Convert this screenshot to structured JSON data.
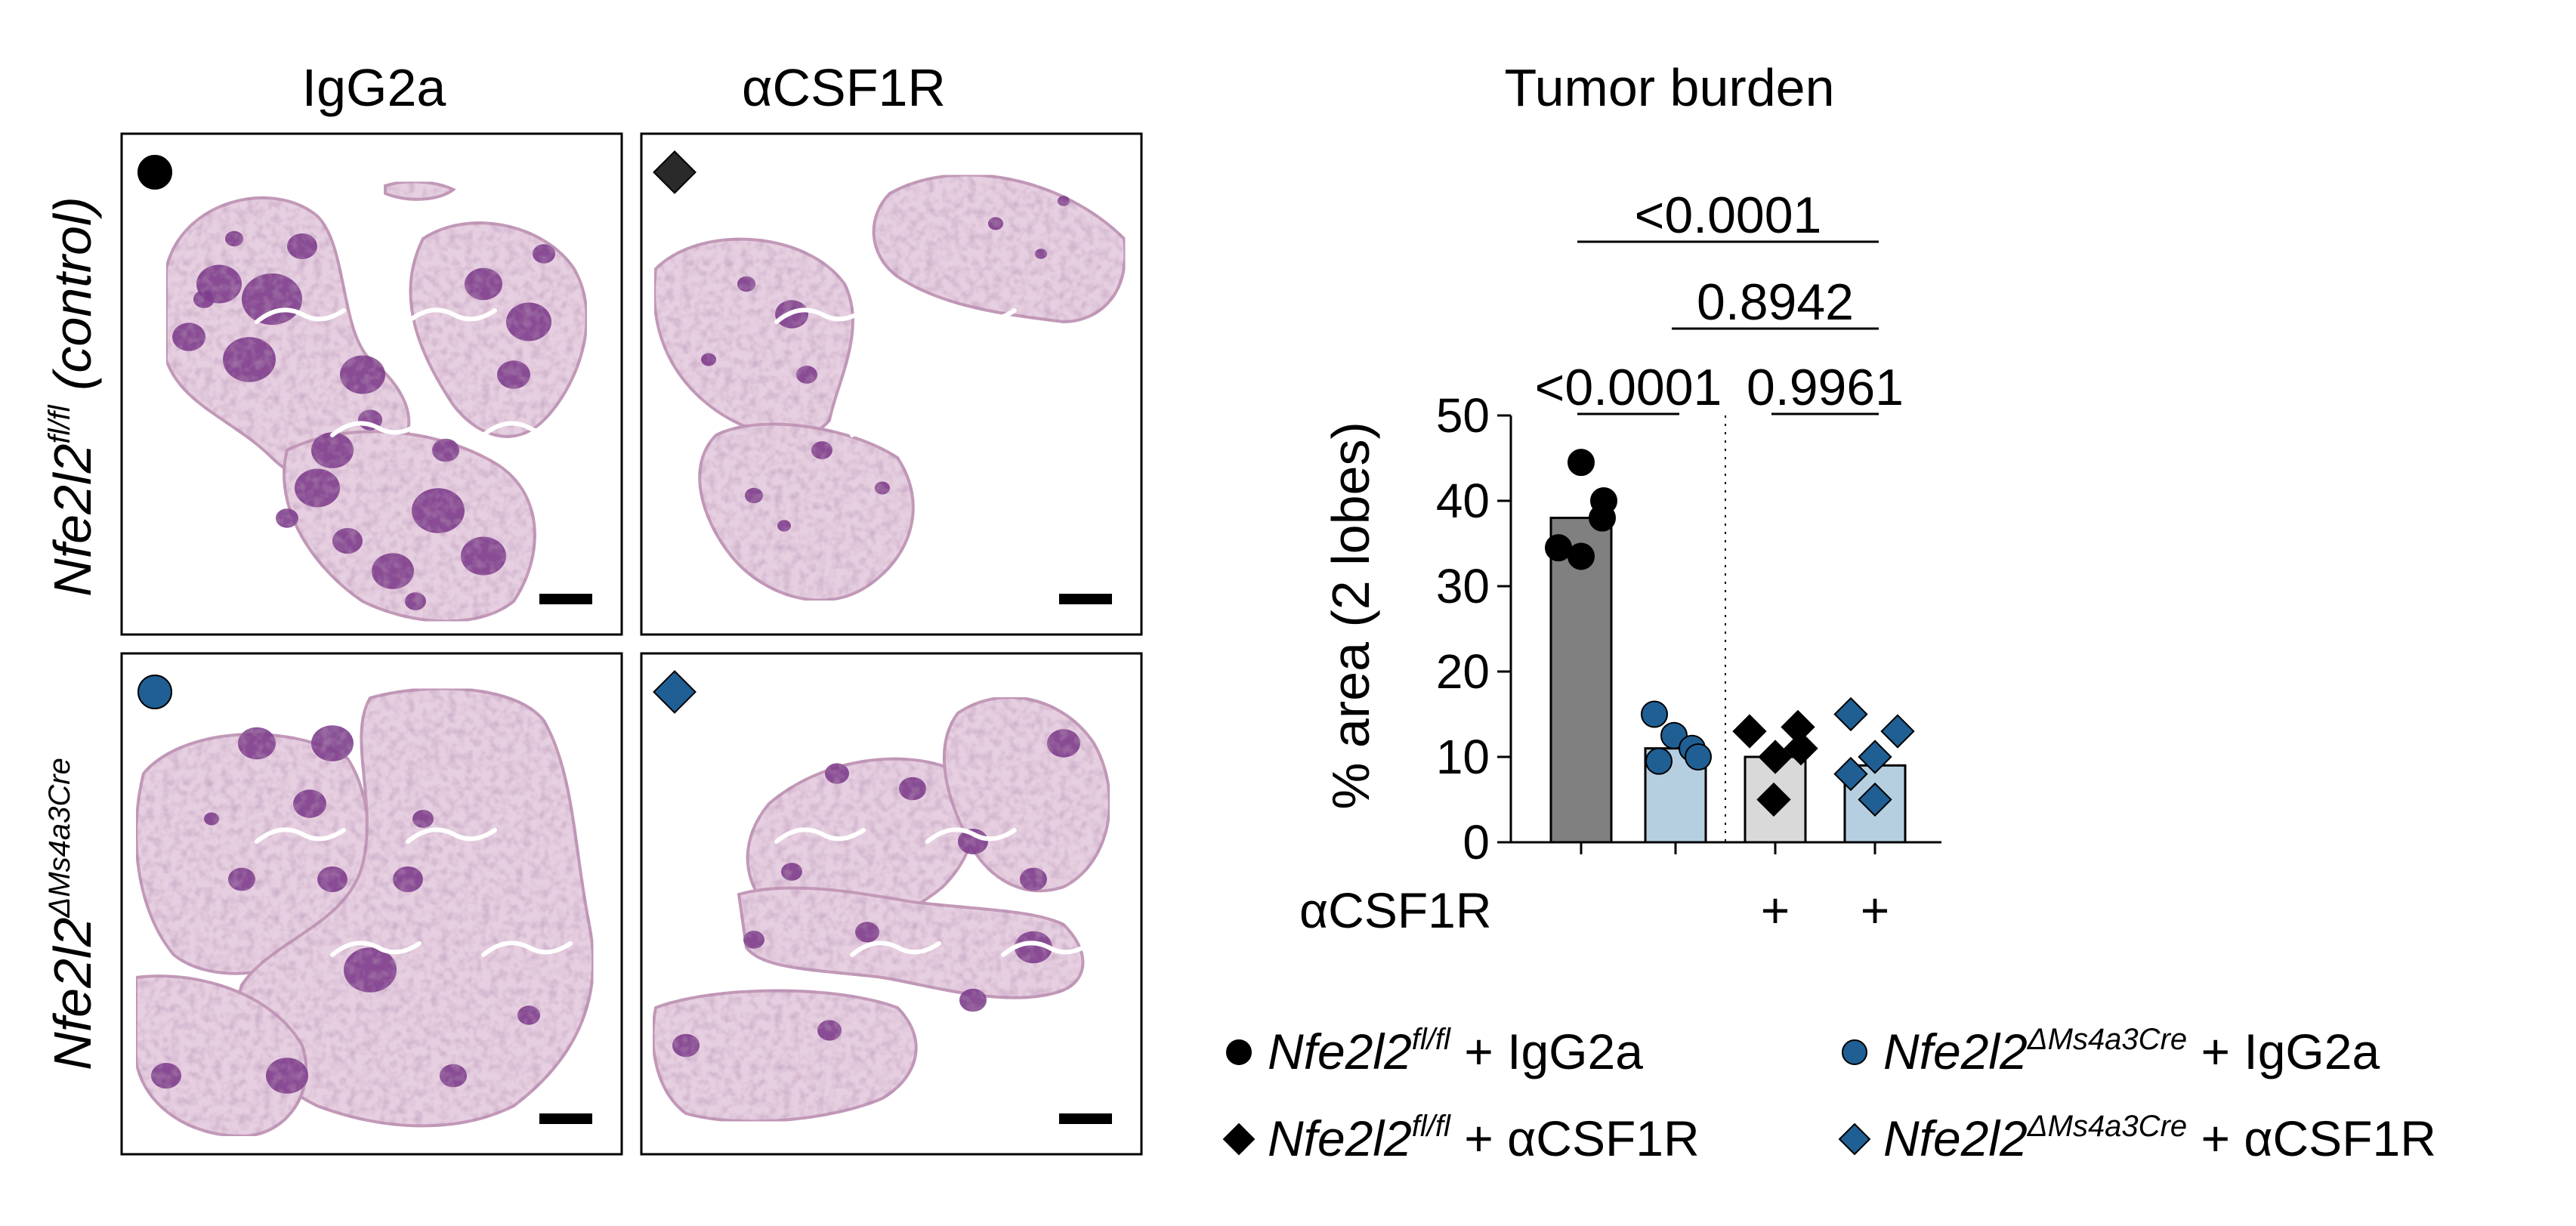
{
  "column_headers": [
    "IgG2a",
    "αCSF1R"
  ],
  "row_labels": [
    {
      "base": "Nfe2l2",
      "sup": "fl/fl",
      "suffix": " (control)"
    },
    {
      "base": "Nfe2l2",
      "sup": "ΔMs4a3Cre",
      "suffix": ""
    }
  ],
  "panel_markers": [
    {
      "shape": "circle",
      "color": "#000000"
    },
    {
      "shape": "diamond",
      "color": "#2a2a2a"
    },
    {
      "shape": "circle",
      "color": "#1f5f94"
    },
    {
      "shape": "diamond",
      "color": "#1f5f94"
    }
  ],
  "colors": {
    "tissue": "#e6cfe0",
    "tissue_edge": "#c39ab8",
    "tumor": "#7d3d8c",
    "vessel": "#ffffff",
    "scale_bar": "#000000"
  },
  "chart_data": {
    "type": "bar",
    "title": "Tumor burden",
    "ylabel": "% area (2 lobes)",
    "ylim": [
      0,
      50
    ],
    "yticks": [
      0,
      10,
      20,
      30,
      40,
      50
    ],
    "treatment_row_label": "αCSF1R",
    "treatment_marks": [
      "",
      "",
      "+",
      "+"
    ],
    "divider_after_bar": 2,
    "bars": [
      {
        "name": "Nfe2l2fl/fl + IgG2a",
        "mean": 38,
        "fill": "#808080",
        "marker": "circle",
        "marker_color": "#000000",
        "points": [
          44.5,
          40,
          38,
          34.5,
          33.5
        ]
      },
      {
        "name": "Nfe2l2ΔMs4a3Cre + IgG2a",
        "mean": 11,
        "fill": "#b6cfe0",
        "marker": "circle",
        "marker_color": "#1f5f94",
        "points": [
          15,
          12.5,
          11,
          10,
          9.5
        ]
      },
      {
        "name": "Nfe2l2fl/fl + αCSF1R",
        "mean": 10,
        "fill": "#d9d9d9",
        "marker": "diamond",
        "marker_color": "#000000",
        "points": [
          13,
          13.5,
          10,
          11,
          5
        ]
      },
      {
        "name": "Nfe2l2ΔMs4a3Cre + αCSF1R",
        "mean": 9,
        "fill": "#b6cfe0",
        "marker": "diamond",
        "marker_color": "#1f5f94",
        "points": [
          15,
          13,
          10,
          8,
          5
        ]
      }
    ],
    "comparisons": [
      {
        "label": "<0.0001",
        "from": 0,
        "to": 1,
        "level": 1
      },
      {
        "label": "0.9961",
        "from": 2,
        "to": 3,
        "level": 1
      },
      {
        "label": "0.8942",
        "from": 1,
        "to": 3,
        "level": 2
      },
      {
        "label": "<0.0001",
        "from": 0,
        "to": 3,
        "level": 3
      }
    ],
    "legend": [
      {
        "marker": "circle",
        "color": "#000000",
        "base": "Nfe2l2",
        "sup": "fl/fl",
        "rest": " + IgG2a"
      },
      {
        "marker": "circle",
        "color": "#1f5f94",
        "base": "Nfe2l2",
        "sup": "ΔMs4a3Cre",
        "rest": " + IgG2a"
      },
      {
        "marker": "diamond",
        "color": "#000000",
        "base": "Nfe2l2",
        "sup": "fl/fl",
        "rest": " + αCSF1R"
      },
      {
        "marker": "diamond",
        "color": "#1f5f94",
        "base": "Nfe2l2",
        "sup": "ΔMs4a3Cre",
        "rest": " + αCSF1R"
      }
    ]
  }
}
